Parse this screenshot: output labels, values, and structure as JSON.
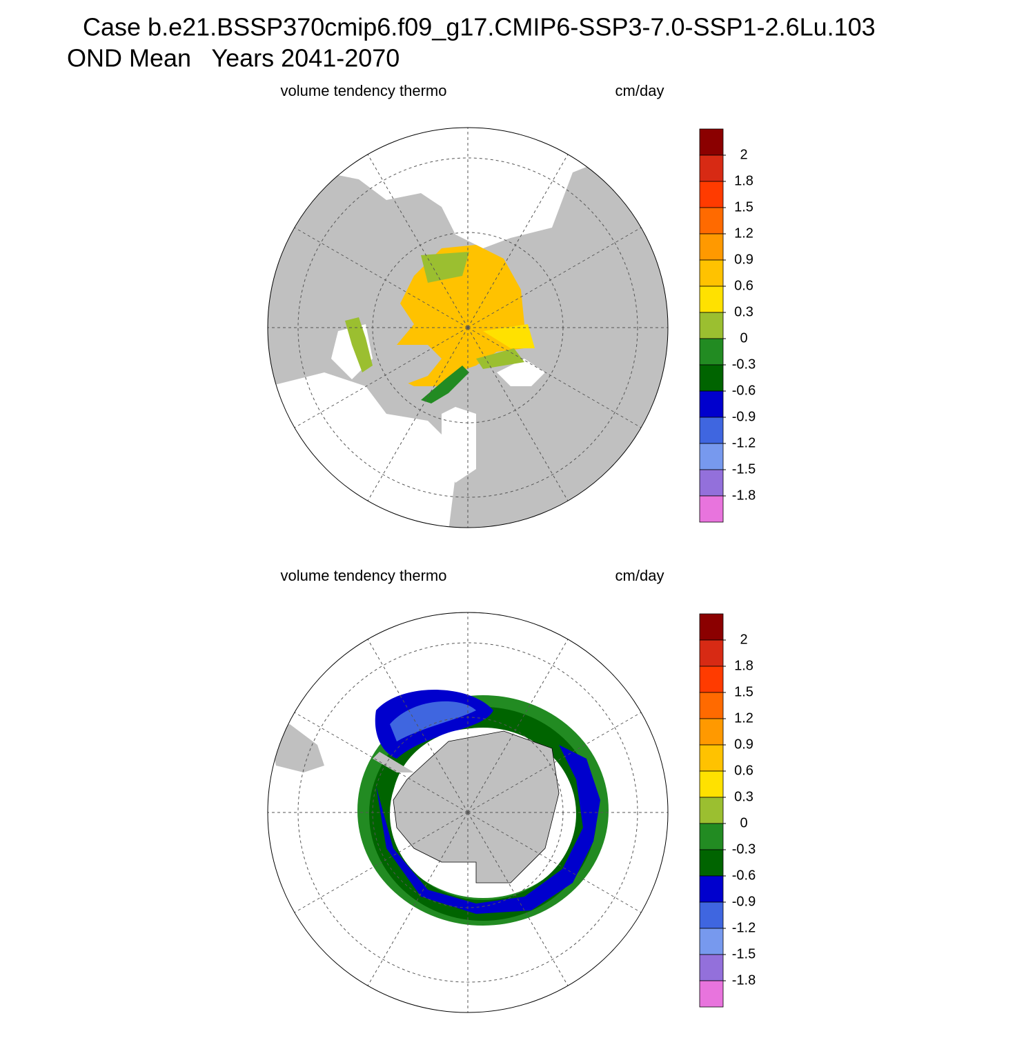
{
  "header": {
    "title_lines": [
      "Case b.e21.BSSP370cmip6.f09_g17.CMIP6-SSP3-7.0-SSP1-2.6Lu.103",
      "OND Mean   Years 2041-2070"
    ]
  },
  "panels": [
    {
      "left_label": "volume tendency thermo",
      "right_label": "cm/day",
      "colorbar": {
        "levels": [
          2,
          1.8,
          1.5,
          1.2,
          0.9,
          0.6,
          0.3,
          0,
          -0.3,
          -0.6,
          -0.9,
          -1.2,
          -1.5,
          -1.8
        ],
        "colors": [
          "#8b0000",
          "#d72a14",
          "#ff3b00",
          "#ff6a00",
          "#ff9900",
          "#ffc200",
          "#ffe100",
          "#9bbf30",
          "#228b22",
          "#006400",
          "#0000cd",
          "#3f66e0",
          "#7799ee",
          "#9370db",
          "#e874dd"
        ]
      }
    },
    {
      "left_label": "volume tendency thermo",
      "right_label": "cm/day",
      "colorbar": {
        "levels": [
          2,
          1.8,
          1.5,
          1.2,
          0.9,
          0.6,
          0.3,
          0,
          -0.3,
          -0.6,
          -0.9,
          -1.2,
          -1.5,
          -1.8
        ],
        "colors": [
          "#8b0000",
          "#d72a14",
          "#ff3b00",
          "#ff6a00",
          "#ff9900",
          "#ffc200",
          "#ffe100",
          "#9bbf30",
          "#228b22",
          "#006400",
          "#0000cd",
          "#3f66e0",
          "#7799ee",
          "#9370db",
          "#e874dd"
        ]
      }
    }
  ]
}
